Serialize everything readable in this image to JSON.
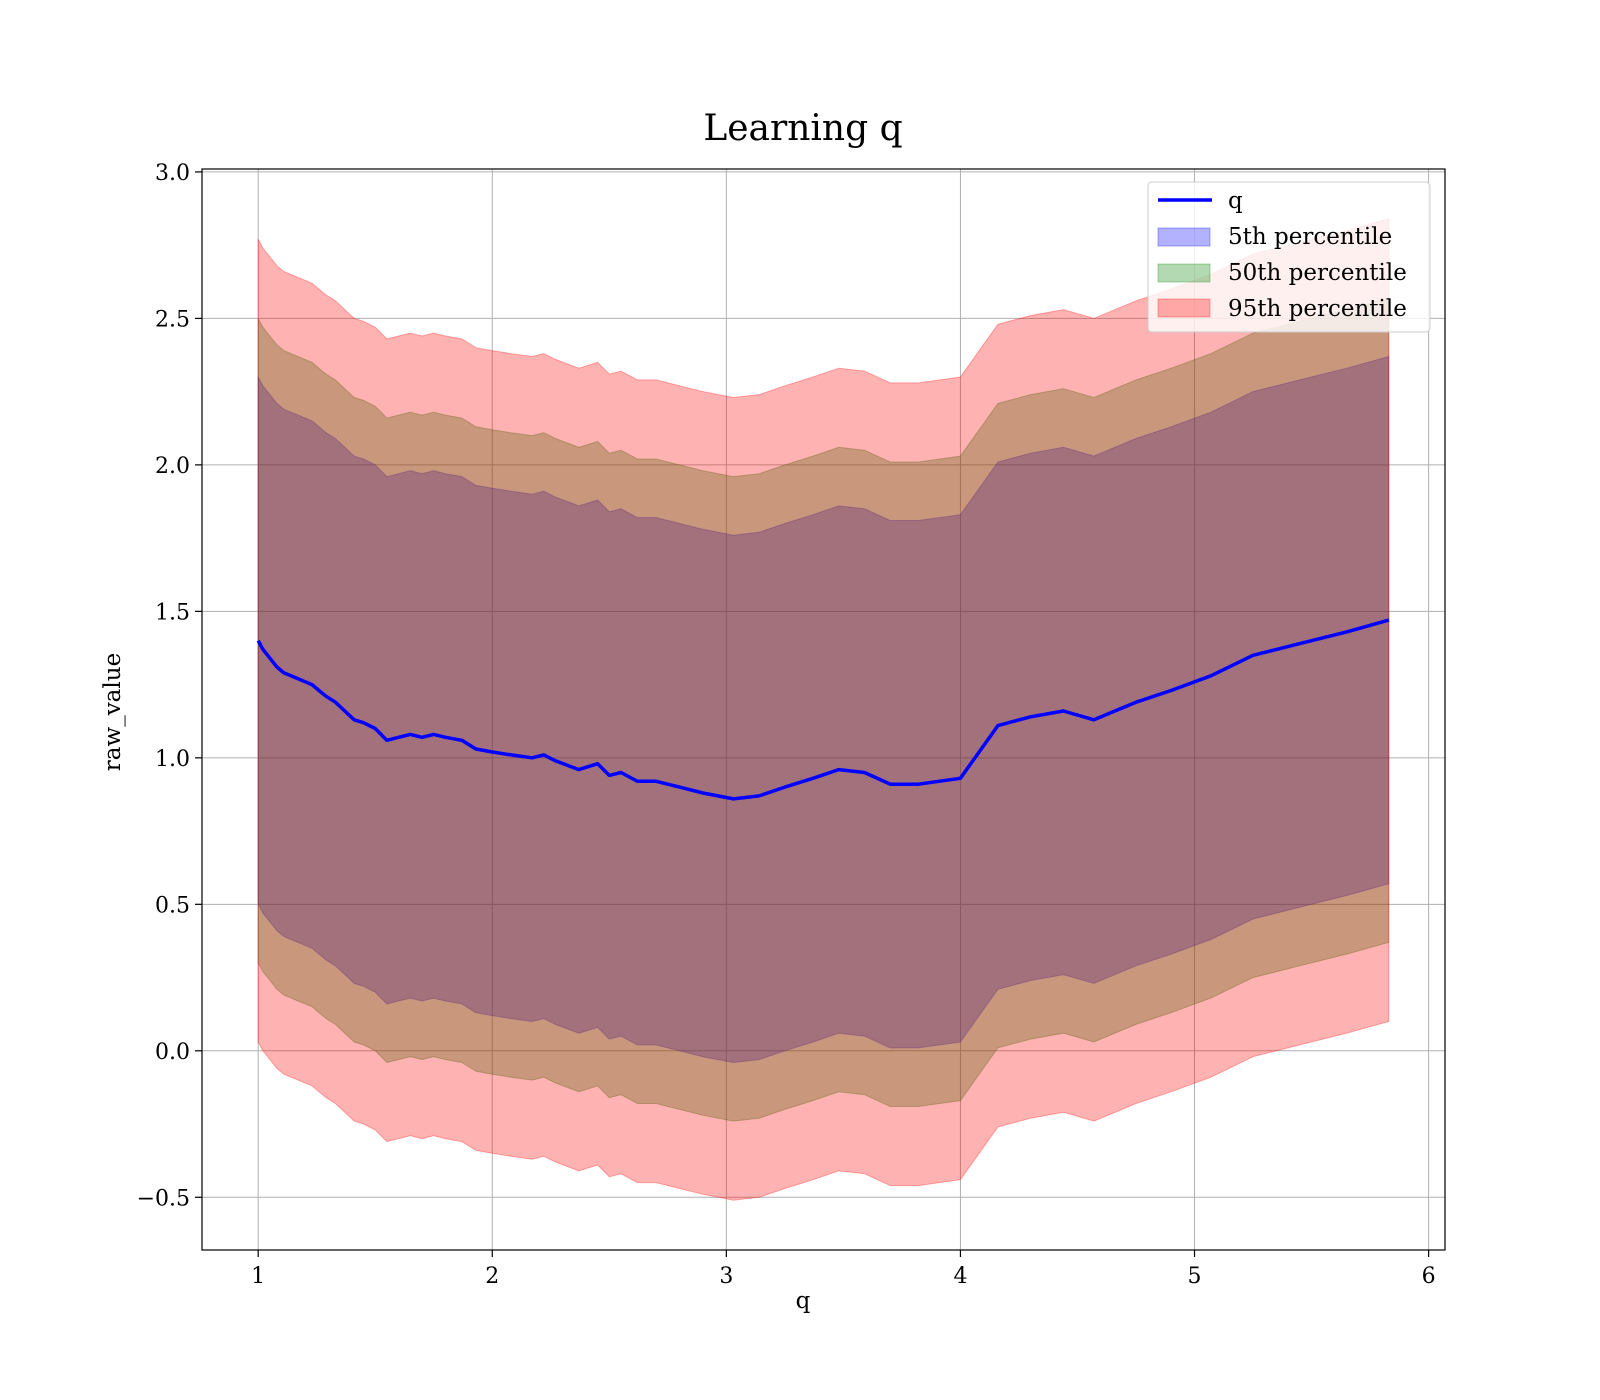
{
  "chart_data": {
    "type": "area",
    "title": "Learning q",
    "xlabel": "q",
    "ylabel": "raw_value",
    "xlim": [
      0.76,
      6.07
    ],
    "ylim": [
      -0.68,
      3.01
    ],
    "xticks": [
      1,
      2,
      3,
      4,
      5,
      6
    ],
    "yticks": [
      -0.5,
      0.0,
      0.5,
      1.0,
      1.5,
      2.0,
      2.5,
      3.0
    ],
    "xtick_labels": [
      "1",
      "2",
      "3",
      "4",
      "5",
      "6"
    ],
    "ytick_labels": [
      "−0.5",
      "0.0",
      "0.5",
      "1.0",
      "1.5",
      "2.0",
      "2.5",
      "3.0"
    ],
    "grid": true,
    "legend_position": "top-right",
    "x": [
      1.0,
      1.02,
      1.05,
      1.08,
      1.11,
      1.14,
      1.17,
      1.2,
      1.23,
      1.26,
      1.29,
      1.33,
      1.37,
      1.41,
      1.45,
      1.5,
      1.55,
      1.6,
      1.65,
      1.7,
      1.75,
      1.8,
      1.87,
      1.93,
      2.0,
      2.08,
      2.17,
      2.22,
      2.27,
      2.37,
      2.45,
      2.5,
      2.55,
      2.62,
      2.7,
      2.75,
      2.8,
      2.9,
      3.03,
      3.14,
      3.25,
      3.37,
      3.48,
      3.59,
      3.7,
      3.82,
      4.0,
      4.16,
      4.3,
      4.44,
      4.57,
      4.75,
      4.9,
      5.07,
      5.25,
      5.45,
      5.65,
      5.83
    ],
    "q": [
      1.4,
      1.37,
      1.34,
      1.31,
      1.29,
      1.28,
      1.27,
      1.26,
      1.25,
      1.23,
      1.21,
      1.19,
      1.16,
      1.13,
      1.12,
      1.1,
      1.06,
      1.07,
      1.08,
      1.07,
      1.08,
      1.07,
      1.06,
      1.03,
      1.02,
      1.01,
      1.0,
      1.01,
      0.99,
      0.96,
      0.98,
      0.94,
      0.95,
      0.92,
      0.92,
      0.91,
      0.9,
      0.88,
      0.86,
      0.87,
      0.9,
      0.93,
      0.96,
      0.95,
      0.91,
      0.91,
      0.93,
      1.11,
      1.14,
      1.16,
      1.13,
      1.19,
      1.23,
      1.28,
      1.35,
      1.39,
      1.43,
      1.47
    ],
    "series": [
      {
        "name": "q",
        "type": "line",
        "color": "#0000ff",
        "values_key": "q"
      },
      {
        "name": "5th percentile",
        "type": "band",
        "color": "#0000ff",
        "alpha": 0.3,
        "half_width": 0.9
      },
      {
        "name": "50th percentile",
        "type": "band",
        "color": "#008000",
        "alpha": 0.3,
        "half_width": 1.1
      },
      {
        "name": "95th percentile",
        "type": "band",
        "color": "#ff0000",
        "alpha": 0.3,
        "half_width": 1.37
      }
    ],
    "legend": [
      "q",
      "5th percentile",
      "50th percentile",
      "95th percentile"
    ]
  }
}
